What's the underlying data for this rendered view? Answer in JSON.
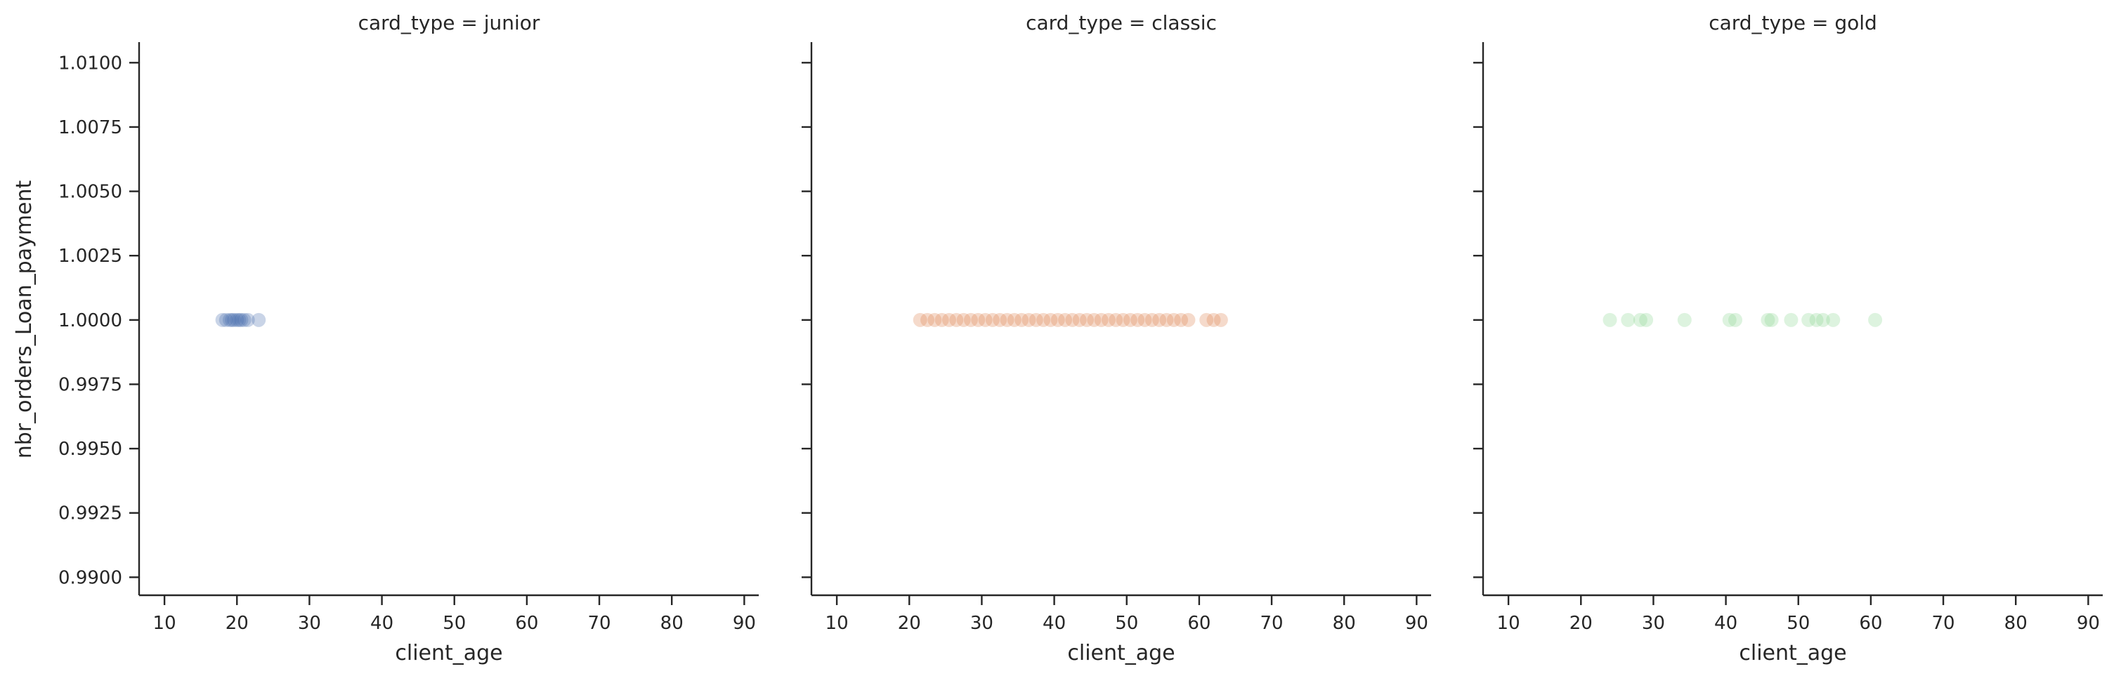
{
  "chart_data": {
    "type": "scatter",
    "layout": "facet-grid",
    "facet_variable": "card_type",
    "xlabel": "client_age",
    "ylabel": "nbr_orders_Loan_payment",
    "xlim": [
      6.5,
      92
    ],
    "ylim": [
      0.9893,
      1.0108
    ],
    "x_ticks": [
      "10",
      "20",
      "30",
      "40",
      "50",
      "60",
      "70",
      "80",
      "90"
    ],
    "y_ticks": [
      "0.9900",
      "0.9925",
      "0.9950",
      "0.9975",
      "1.0000",
      "1.0025",
      "1.0050",
      "1.0075",
      "1.0100"
    ],
    "grid": false,
    "marker_alpha": 0.3,
    "facets": [
      {
        "title": "card_type = junior",
        "color": "#4c72b0",
        "x": [
          18,
          18.5,
          19,
          19.3,
          19.6,
          20,
          20.3,
          20.6,
          21,
          21.5,
          23
        ],
        "y": [
          1,
          1,
          1,
          1,
          1,
          1,
          1,
          1,
          1,
          1,
          1
        ]
      },
      {
        "title": "card_type = classic",
        "color": "#dd8452",
        "x": [
          21.5,
          22.5,
          23.5,
          24.5,
          25.5,
          26.5,
          27.5,
          28.5,
          29.5,
          30.5,
          31.5,
          32.5,
          33.5,
          34.5,
          35.5,
          36.5,
          37.5,
          38.5,
          39.5,
          40.5,
          41.5,
          42.5,
          43.5,
          44.5,
          45.5,
          46.5,
          47.5,
          48.5,
          49.5,
          50.5,
          51.5,
          52.5,
          53.5,
          54.5,
          55.5,
          56.5,
          57.5,
          58.5,
          61,
          62,
          63
        ],
        "y": [
          1,
          1,
          1,
          1,
          1,
          1,
          1,
          1,
          1,
          1,
          1,
          1,
          1,
          1,
          1,
          1,
          1,
          1,
          1,
          1,
          1,
          1,
          1,
          1,
          1,
          1,
          1,
          1,
          1,
          1,
          1,
          1,
          1,
          1,
          1,
          1,
          1,
          1,
          1,
          1,
          1
        ]
      },
      {
        "title": "card_type = gold",
        "color": "#8fd694",
        "x": [
          24,
          26.5,
          28.2,
          29,
          34.3,
          40.5,
          41.3,
          45.8,
          46.3,
          49,
          51.4,
          52.5,
          53.4,
          54.8,
          60.6
        ],
        "y": [
          1,
          1,
          1,
          1,
          1,
          1,
          1,
          1,
          1,
          1,
          1,
          1,
          1,
          1,
          1
        ]
      }
    ]
  }
}
